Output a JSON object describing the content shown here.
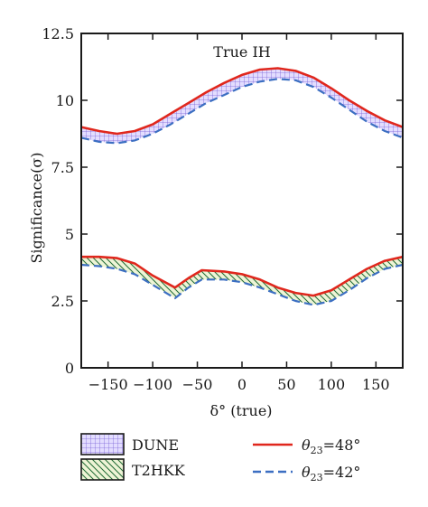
{
  "chart_data": {
    "type": "line",
    "title": "True IH",
    "xlabel": "δ° (true)",
    "ylabel": "Significance(σ)",
    "xlim": [
      -180,
      180
    ],
    "ylim": [
      0,
      12.5
    ],
    "xticks": [
      -150,
      -100,
      -50,
      0,
      50,
      100,
      150
    ],
    "xtick_labels": [
      "−150",
      "−100",
      "−50",
      "0",
      "50",
      "100",
      "150"
    ],
    "yticks": [
      0,
      2.5,
      5,
      7.5,
      10,
      12.5
    ],
    "ytick_labels": [
      "0",
      "2.5",
      "5",
      "7.5",
      "10",
      "12.5"
    ],
    "grid": false,
    "legend_placement": "below",
    "series": [
      {
        "name": "DUNE θ23=48°",
        "color": "#e0271d",
        "style": "solid",
        "x": [
          -180,
          -160,
          -140,
          -120,
          -100,
          -80,
          -60,
          -40,
          -20,
          0,
          20,
          40,
          60,
          80,
          100,
          120,
          140,
          160,
          180
        ],
        "y": [
          9.0,
          8.85,
          8.75,
          8.85,
          9.1,
          9.5,
          9.9,
          10.3,
          10.65,
          10.95,
          11.15,
          11.2,
          11.1,
          10.85,
          10.45,
          10.0,
          9.6,
          9.25,
          9.0
        ]
      },
      {
        "name": "DUNE θ23=42°",
        "color": "#3c6fc2",
        "style": "dashed",
        "x": [
          -180,
          -160,
          -140,
          -120,
          -100,
          -80,
          -60,
          -40,
          -20,
          0,
          20,
          40,
          60,
          80,
          100,
          120,
          140,
          160,
          180
        ],
        "y": [
          8.6,
          8.45,
          8.4,
          8.5,
          8.75,
          9.1,
          9.5,
          9.9,
          10.2,
          10.5,
          10.7,
          10.8,
          10.75,
          10.5,
          10.1,
          9.65,
          9.2,
          8.85,
          8.6
        ]
      },
      {
        "name": "T2HKK θ23=48°",
        "color": "#e0271d",
        "style": "solid",
        "x": [
          -180,
          -160,
          -140,
          -120,
          -100,
          -75,
          -60,
          -45,
          -20,
          0,
          20,
          40,
          60,
          80,
          100,
          120,
          140,
          160,
          180
        ],
        "y": [
          4.15,
          4.15,
          4.1,
          3.9,
          3.45,
          3.0,
          3.35,
          3.65,
          3.6,
          3.5,
          3.3,
          3.0,
          2.8,
          2.7,
          2.9,
          3.3,
          3.7,
          4.0,
          4.15
        ]
      },
      {
        "name": "T2HKK θ23=42°",
        "color": "#3c6fc2",
        "style": "dashed",
        "x": [
          -180,
          -160,
          -140,
          -120,
          -100,
          -75,
          -60,
          -45,
          -20,
          0,
          20,
          40,
          60,
          80,
          100,
          120,
          140,
          160,
          180
        ],
        "y": [
          3.85,
          3.8,
          3.7,
          3.5,
          3.1,
          2.6,
          3.0,
          3.3,
          3.3,
          3.2,
          3.0,
          2.75,
          2.5,
          2.35,
          2.5,
          2.9,
          3.35,
          3.7,
          3.85
        ]
      }
    ],
    "bands": [
      {
        "name": "DUNE",
        "upper_series": 0,
        "lower_series": 1,
        "hatch": "grid",
        "fill": "#d9d3ff",
        "stroke": "#7a63d8"
      },
      {
        "name": "T2HKK",
        "upper_series": 2,
        "lower_series": 3,
        "hatch": "diagonal",
        "fill": "#ecf3cf",
        "stroke": "#2e7a3b"
      }
    ],
    "legend": {
      "bands": [
        {
          "label": "DUNE",
          "hatch": "grid"
        },
        {
          "label": "T2HKK",
          "hatch": "diagonal"
        }
      ],
      "lines": [
        {
          "label": "θ23=48°",
          "color": "#e0271d",
          "style": "solid"
        },
        {
          "label": "θ23=42°",
          "color": "#3c6fc2",
          "style": "dashed"
        }
      ]
    }
  }
}
